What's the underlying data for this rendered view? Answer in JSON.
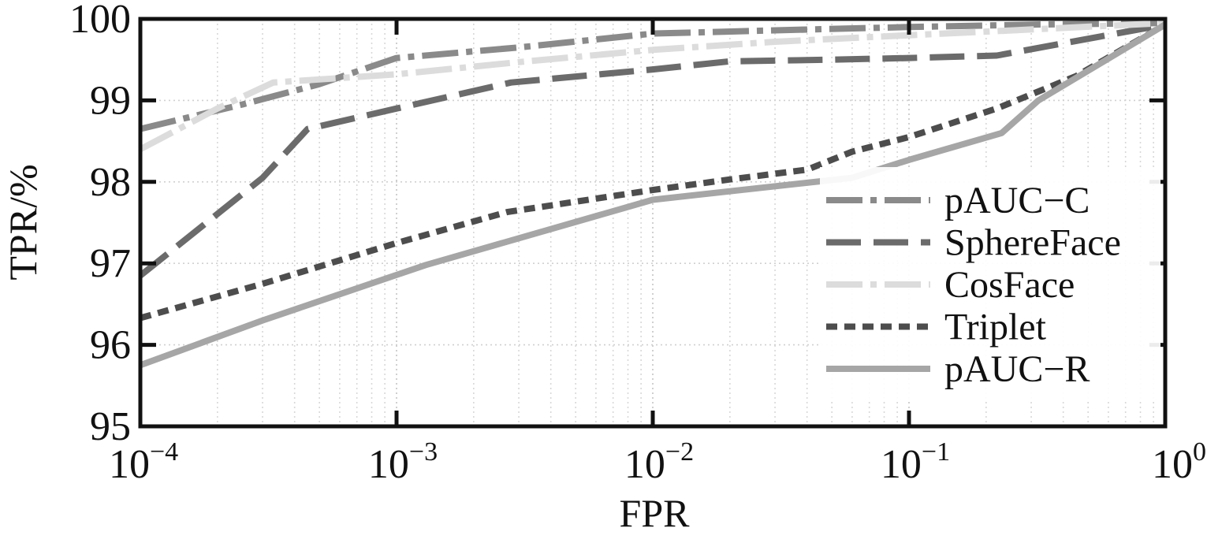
{
  "chart_data": {
    "type": "line",
    "xlabel": "FPR",
    "ylabel": "TPR/%",
    "xscale": "log",
    "xlim": [
      0.0001,
      1
    ],
    "ylim": [
      95,
      100
    ],
    "grid": "dotted",
    "legend_position": "lower-right",
    "x_ticks": [
      {
        "value": 0.0001,
        "base": "10",
        "exp": "−4"
      },
      {
        "value": 0.001,
        "base": "10",
        "exp": "−3"
      },
      {
        "value": 0.01,
        "base": "10",
        "exp": "−2"
      },
      {
        "value": 0.1,
        "base": "10",
        "exp": "−1"
      },
      {
        "value": 1,
        "base": "10",
        "exp": "0"
      }
    ],
    "y_ticks": [
      {
        "value": 95,
        "label": "95"
      },
      {
        "value": 96,
        "label": "96"
      },
      {
        "value": 97,
        "label": "97"
      },
      {
        "value": 98,
        "label": "98"
      },
      {
        "value": 99,
        "label": "99"
      },
      {
        "value": 100,
        "label": "100"
      }
    ],
    "series": [
      {
        "name": "pAUC−C",
        "color": "#8a8a8a",
        "style": "dashdot",
        "points": [
          [
            0.0001,
            98.65
          ],
          [
            0.00025,
            98.95
          ],
          [
            0.0005,
            99.2
          ],
          [
            0.001,
            99.52
          ],
          [
            0.003,
            99.65
          ],
          [
            0.01,
            99.82
          ],
          [
            0.03,
            99.86
          ],
          [
            0.1,
            99.9
          ],
          [
            0.3,
            99.93
          ],
          [
            1,
            99.95
          ]
        ]
      },
      {
        "name": "SphereFace",
        "color": "#6b6b6b",
        "style": "longdash",
        "points": [
          [
            0.0001,
            96.85
          ],
          [
            0.0003,
            98.05
          ],
          [
            0.00045,
            98.65
          ],
          [
            0.001,
            98.9
          ],
          [
            0.0028,
            99.22
          ],
          [
            0.01,
            99.38
          ],
          [
            0.02,
            99.48
          ],
          [
            0.05,
            99.5
          ],
          [
            0.1,
            99.52
          ],
          [
            0.22,
            99.55
          ],
          [
            1,
            99.93
          ]
        ]
      },
      {
        "name": "CosFace",
        "color": "#dcdcdc",
        "style": "dashdot",
        "points": [
          [
            0.0001,
            98.4
          ],
          [
            0.0002,
            98.9
          ],
          [
            0.00033,
            99.22
          ],
          [
            0.001,
            99.32
          ],
          [
            0.003,
            99.47
          ],
          [
            0.01,
            99.62
          ],
          [
            0.03,
            99.72
          ],
          [
            0.1,
            99.8
          ],
          [
            0.3,
            99.87
          ],
          [
            1,
            99.95
          ]
        ]
      },
      {
        "name": "Triplet",
        "color": "#4d4d4d",
        "style": "dashed",
        "points": [
          [
            0.0001,
            96.33
          ],
          [
            0.0003,
            96.75
          ],
          [
            0.001,
            97.25
          ],
          [
            0.0027,
            97.63
          ],
          [
            0.01,
            97.9
          ],
          [
            0.02,
            98.03
          ],
          [
            0.04,
            98.15
          ],
          [
            0.06,
            98.37
          ],
          [
            0.1,
            98.55
          ],
          [
            0.22,
            98.9
          ],
          [
            0.45,
            99.3
          ],
          [
            1,
            99.93
          ]
        ]
      },
      {
        "name": "pAUC−R",
        "color": "#a6a6a6",
        "style": "solid",
        "points": [
          [
            0.0001,
            95.75
          ],
          [
            0.0003,
            96.3
          ],
          [
            0.0013,
            96.98
          ],
          [
            0.01,
            97.78
          ],
          [
            0.06,
            98.05
          ],
          [
            0.1,
            98.27
          ],
          [
            0.23,
            98.6
          ],
          [
            0.32,
            99.0
          ],
          [
            1,
            99.93
          ]
        ]
      }
    ]
  }
}
